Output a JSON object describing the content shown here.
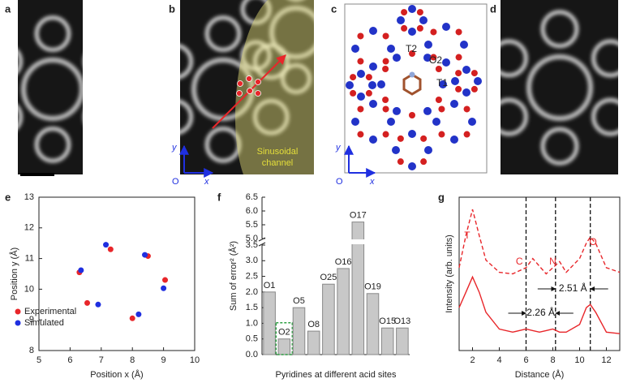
{
  "panels": {
    "a": {
      "label": "a"
    },
    "b": {
      "label": "b",
      "axis_y": "y",
      "axis_x": "x",
      "origin": "O",
      "channel": [
        "Sinusoidal",
        "channel"
      ]
    },
    "c": {
      "label": "c",
      "sites": [
        "T2",
        "O2",
        "T1"
      ],
      "axis_y": "y",
      "axis_x": "x",
      "origin": "O"
    },
    "d": {
      "label": "d"
    },
    "e": {
      "label": "e"
    },
    "f": {
      "label": "f"
    },
    "g": {
      "label": "g"
    }
  },
  "chart_data": [
    {
      "type": "scatter",
      "x_label": "Position x (Å)",
      "y_label": "Position y (Å)",
      "xlim": [
        5,
        10
      ],
      "ylim": [
        8,
        13
      ],
      "xticks": [
        5,
        6,
        7,
        8,
        9,
        10
      ],
      "yticks": [
        8,
        9,
        10,
        11,
        12,
        13
      ],
      "legend": "lower left",
      "series": [
        {
          "name": "Experimental",
          "color": "#e8262a",
          "x": [
            6.3,
            7.3,
            8.5,
            9.05,
            8.0,
            6.55
          ],
          "values": [
            10.55,
            11.3,
            11.08,
            10.3,
            9.05,
            9.55
          ]
        },
        {
          "name": "Simulated",
          "color": "#1f2fe0",
          "x": [
            6.35,
            7.15,
            8.4,
            9.0,
            8.2,
            6.9
          ],
          "values": [
            10.62,
            11.45,
            11.12,
            10.03,
            9.18,
            9.5
          ]
        }
      ]
    },
    {
      "type": "bar",
      "x_label": "Pyridines at different acid sites",
      "y_label": "Sum of error² (Å²)",
      "categories": [
        "O1",
        "O2",
        "O5",
        "O8",
        "O25",
        "O16",
        "O17",
        "O19",
        "O15",
        "O13"
      ],
      "values": [
        2.0,
        0.5,
        1.5,
        0.75,
        2.25,
        2.75,
        5.6,
        1.95,
        0.85,
        0.85
      ],
      "color": "#c8c8c8",
      "highlight": "O2",
      "highlight_color": "#2ea043",
      "ylim": [
        0,
        6.5
      ],
      "ybreak": [
        3.5,
        5.0
      ],
      "yticks": [
        {
          "value": 0,
          "label": "0.0"
        },
        0.5,
        {
          "value": 1,
          "label": "1.0"
        },
        1.5,
        {
          "value": 2,
          "label": "2.0"
        },
        2.5,
        {
          "value": 3,
          "label": "3.0"
        },
        3.5,
        {
          "value": 5,
          "label": "5.0"
        },
        5.5,
        {
          "value": 6,
          "label": "6.0"
        },
        6.5
      ]
    },
    {
      "type": "line",
      "x_label": "Distance (Å)",
      "y_label": "Intensity (arb. units)",
      "xlim": [
        1,
        13
      ],
      "ylim": [
        0,
        10
      ],
      "xticks": [
        2,
        4,
        6,
        8,
        10,
        12
      ],
      "x": [
        1,
        1.5,
        2,
        2.5,
        3,
        4,
        5,
        6,
        6.5,
        7,
        7.5,
        8,
        8.5,
        9,
        10,
        10.5,
        10.8,
        11.2,
        12,
        13
      ],
      "series": [
        {
          "color": "#e8262a",
          "dash": true,
          "values": [
            5.4,
            7.5,
            9.2,
            7.5,
            5.9,
            5.1,
            5.0,
            5.4,
            6.0,
            5.5,
            5.0,
            5.4,
            5.8,
            5.1,
            6.0,
            7.0,
            7.4,
            7.0,
            5.4,
            5.1
          ]
        },
        {
          "color": "#e8262a",
          "dash": false,
          "values": [
            2.8,
            3.8,
            4.8,
            3.8,
            2.5,
            1.4,
            1.2,
            1.4,
            1.3,
            1.2,
            1.3,
            1.4,
            1.2,
            1.2,
            1.7,
            2.8,
            3.0,
            2.5,
            1.2,
            1.1
          ]
        }
      ],
      "vlines": [
        6,
        8.2,
        10.8
      ],
      "annotations": [
        "T",
        "C",
        "N",
        "O",
        "2.51 Å",
        "2.26 Å"
      ]
    }
  ]
}
